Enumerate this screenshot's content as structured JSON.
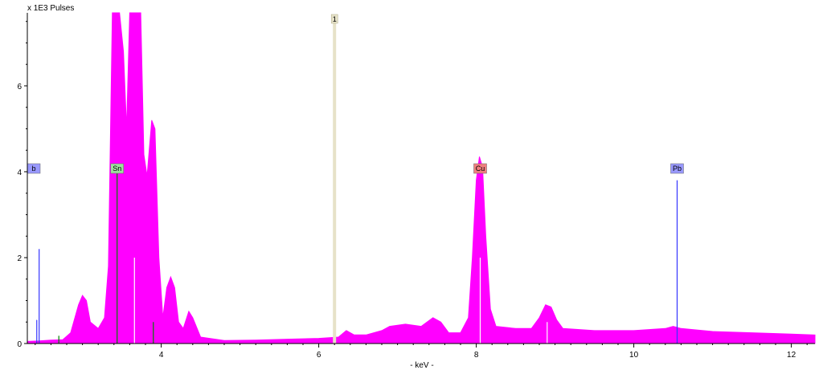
{
  "chart_data": {
    "type": "area",
    "title": "",
    "ylabel": "x 1E3 Pulses",
    "xlabel": "- keV -",
    "xlim": [
      2.3,
      12.3
    ],
    "ylim": [
      0,
      7.7
    ],
    "x_ticks": [
      4,
      6,
      8,
      10,
      12
    ],
    "y_ticks": [
      0,
      2,
      4,
      6
    ],
    "colors": {
      "spectrum": "#ff00ff",
      "marker_line_pb": "#3333ff",
      "cursor_line": "#e6e2c8",
      "sn_label_bg": "#9ee09e",
      "cu_label_bg": "#f08080",
      "pb_label_bg": "#9999ff"
    },
    "spectrum": [
      [
        2.3,
        0.05
      ],
      [
        2.45,
        0.06
      ],
      [
        2.6,
        0.08
      ],
      [
        2.75,
        0.09
      ],
      [
        2.85,
        0.25
      ],
      [
        2.95,
        0.9
      ],
      [
        3.0,
        1.12
      ],
      [
        3.05,
        1.0
      ],
      [
        3.1,
        0.5
      ],
      [
        3.2,
        0.35
      ],
      [
        3.28,
        0.6
      ],
      [
        3.33,
        1.8
      ],
      [
        3.38,
        7.7
      ],
      [
        3.47,
        7.7
      ],
      [
        3.52,
        6.8
      ],
      [
        3.56,
        5.0
      ],
      [
        3.6,
        7.7
      ],
      [
        3.74,
        7.7
      ],
      [
        3.78,
        4.4
      ],
      [
        3.82,
        3.9
      ],
      [
        3.88,
        5.2
      ],
      [
        3.92,
        5.0
      ],
      [
        3.97,
        2.0
      ],
      [
        4.02,
        0.6
      ],
      [
        4.07,
        1.3
      ],
      [
        4.12,
        1.55
      ],
      [
        4.17,
        1.3
      ],
      [
        4.22,
        0.5
      ],
      [
        4.28,
        0.35
      ],
      [
        4.35,
        0.75
      ],
      [
        4.4,
        0.6
      ],
      [
        4.5,
        0.15
      ],
      [
        4.8,
        0.07
      ],
      [
        5.2,
        0.08
      ],
      [
        5.6,
        0.1
      ],
      [
        6.0,
        0.12
      ],
      [
        6.25,
        0.15
      ],
      [
        6.35,
        0.3
      ],
      [
        6.45,
        0.2
      ],
      [
        6.6,
        0.2
      ],
      [
        6.8,
        0.3
      ],
      [
        6.9,
        0.4
      ],
      [
        7.1,
        0.45
      ],
      [
        7.3,
        0.4
      ],
      [
        7.45,
        0.6
      ],
      [
        7.55,
        0.5
      ],
      [
        7.65,
        0.25
      ],
      [
        7.8,
        0.25
      ],
      [
        7.9,
        0.6
      ],
      [
        7.95,
        2.0
      ],
      [
        8.0,
        3.8
      ],
      [
        8.04,
        4.35
      ],
      [
        8.08,
        4.1
      ],
      [
        8.12,
        2.5
      ],
      [
        8.18,
        0.8
      ],
      [
        8.25,
        0.4
      ],
      [
        8.5,
        0.35
      ],
      [
        8.7,
        0.35
      ],
      [
        8.8,
        0.6
      ],
      [
        8.88,
        0.9
      ],
      [
        8.95,
        0.85
      ],
      [
        9.02,
        0.55
      ],
      [
        9.1,
        0.35
      ],
      [
        9.5,
        0.3
      ],
      [
        10.0,
        0.3
      ],
      [
        10.4,
        0.35
      ],
      [
        10.5,
        0.4
      ],
      [
        10.6,
        0.35
      ],
      [
        11.0,
        0.28
      ],
      [
        11.5,
        0.25
      ],
      [
        12.0,
        0.22
      ],
      [
        12.3,
        0.2
      ]
    ],
    "element_lines": [
      {
        "x": 2.42,
        "y": 0.55,
        "color": "#3333ff"
      },
      {
        "x": 2.45,
        "y": 2.2,
        "color": "#3333ff"
      },
      {
        "x": 2.7,
        "y": 0.18,
        "color": "#008000"
      },
      {
        "x": 3.44,
        "y": 4.0,
        "color": "#008000"
      },
      {
        "x": 3.66,
        "y": 2.0,
        "color": "#ffffff"
      },
      {
        "x": 3.9,
        "y": 0.5,
        "color": "#008000"
      },
      {
        "x": 8.05,
        "y": 2.0,
        "color": "#ffffff"
      },
      {
        "x": 8.9,
        "y": 0.5,
        "color": "#ffffff"
      },
      {
        "x": 10.55,
        "y": 3.8,
        "color": "#3333ff"
      }
    ],
    "markers": [
      {
        "label": "Sn",
        "x": 3.44,
        "y": 4.0,
        "bg": "#9ee09e"
      },
      {
        "label": "Cu",
        "x": 8.05,
        "y": 4.0,
        "bg": "#f08080"
      },
      {
        "label": "Pb",
        "x": 10.55,
        "y": 4.0,
        "bg": "#9999ff"
      },
      {
        "label": "b",
        "x": 2.35,
        "y": 4.0,
        "bg": "#9999ff"
      }
    ],
    "cursor": {
      "label": "1",
      "x": 6.2
    }
  }
}
